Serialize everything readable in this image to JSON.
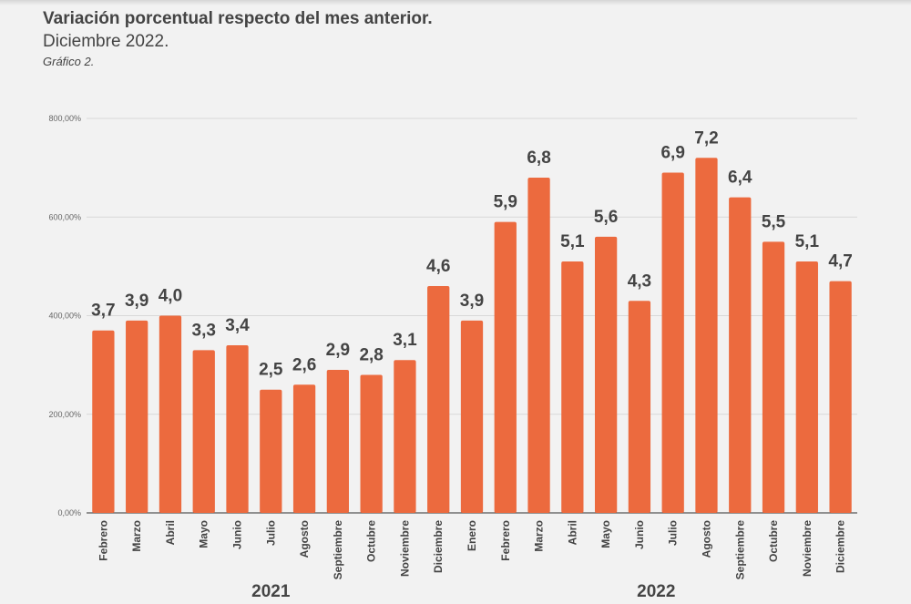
{
  "header": {
    "title": "Variación porcentual respecto del mes anterior.",
    "subtitle": "Diciembre  2022.",
    "caption": "Gráfico 2."
  },
  "chart_data": {
    "type": "bar",
    "title": "Variación porcentual respecto del mes anterior.",
    "subtitle": "Diciembre  2022.",
    "xlabel": "",
    "ylabel": "",
    "ylim": [
      0,
      800
    ],
    "yticks": [
      0,
      200,
      400,
      600,
      800
    ],
    "ytick_labels": [
      "0,00%",
      "200,00%",
      "400,00%",
      "600,00%",
      "800,00%"
    ],
    "grid": true,
    "bar_color": "#ec6a3e",
    "categories": [
      "Febrero",
      "Marzo",
      "Abril",
      "Mayo",
      "Junio",
      "Julio",
      "Agosto",
      "Septiembre",
      "Octubre",
      "Noviembre",
      "Diciembre",
      "Enero",
      "Febrero",
      "Marzo",
      "Abril",
      "Mayo",
      "Junio",
      "Julio",
      "Agosto",
      "Septiembre",
      "Octubre",
      "Noviembre",
      "Diciembre"
    ],
    "groups": [
      {
        "label": "2021",
        "start": 0,
        "end": 10
      },
      {
        "label": "2022",
        "start": 11,
        "end": 22
      }
    ],
    "values": [
      3.7,
      3.9,
      4.0,
      3.3,
      3.4,
      2.5,
      2.6,
      2.9,
      2.8,
      3.1,
      4.6,
      3.9,
      5.9,
      6.8,
      5.1,
      5.6,
      4.3,
      6.9,
      7.2,
      6.4,
      5.5,
      5.1,
      4.7
    ],
    "data_labels": [
      "3,7",
      "3,9",
      "4,0",
      "3,3",
      "3,4",
      "2,5",
      "2,6",
      "2,9",
      "2,8",
      "3,1",
      "4,6",
      "3,9",
      "5,9",
      "6,8",
      "5,1",
      "5,6",
      "4,3",
      "6,9",
      "7,2",
      "6,4",
      "5,5",
      "5,1",
      "4,7"
    ],
    "plotted_values_percent_axis": [
      370,
      390,
      400,
      330,
      340,
      250,
      260,
      290,
      280,
      310,
      460,
      390,
      590,
      680,
      510,
      560,
      430,
      690,
      720,
      640,
      550,
      510,
      470
    ]
  }
}
